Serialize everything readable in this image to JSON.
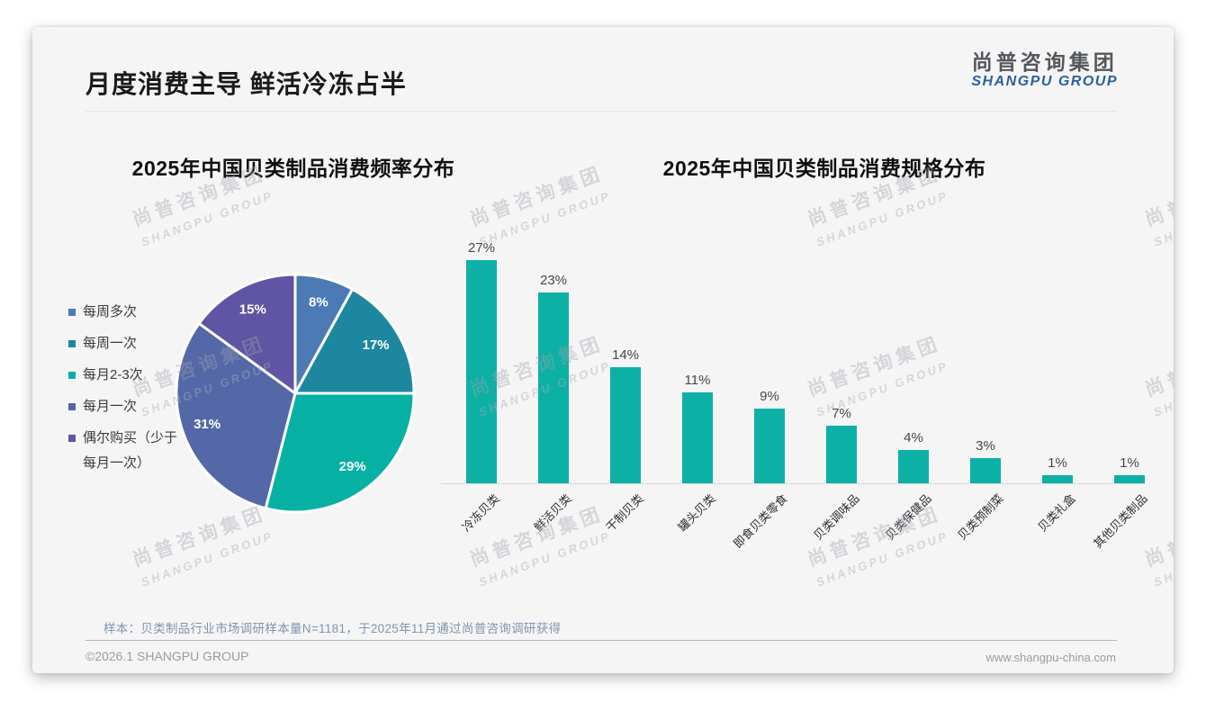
{
  "page": {
    "slide_title": "月度消费主导 鲜活冷冻占半",
    "logo": {
      "cn": "尚普咨询集团",
      "en": "SHANGPU GROUP"
    },
    "watermark": {
      "line1": "尚普咨询集团",
      "line2": "SHANGPU GROUP"
    },
    "footnote": "样本：贝类制品行业市场调研样本量N=1181，于2025年11月通过尚普咨询调研获得",
    "footer": {
      "copyright": "©2026.1 SHANGPU GROUP",
      "website": "www.shangpu-china.com"
    }
  },
  "chart_data": [
    {
      "type": "pie",
      "title": "2025年中国贝类制品消费频率分布",
      "categories": [
        "每周多次",
        "每周一次",
        "每月2-3次",
        "每月一次",
        "偶尔购买（少于每月一次）"
      ],
      "values": [
        8,
        17,
        29,
        31,
        15
      ],
      "labels": [
        "8%",
        "17%",
        "29%",
        "31%",
        "15%"
      ],
      "unit": "%",
      "colors": [
        "#4b7ab4",
        "#1e87a0",
        "#06b1a3",
        "#5468a8",
        "#6054a4"
      ],
      "legend_position": "left",
      "start_angle_deg": 0,
      "direction": "clockwise",
      "slice_border_color": "#ffffff",
      "label_color": "#ffffff"
    },
    {
      "type": "bar",
      "title": "2025年中国贝类制品消费规格分布",
      "categories": [
        "冷冻贝类",
        "鲜活贝类",
        "干制贝类",
        "罐头贝类",
        "即食贝类零食",
        "贝类调味品",
        "贝类保健品",
        "贝类预制菜",
        "贝类礼盒",
        "其他贝类制品"
      ],
      "values": [
        27,
        23,
        14,
        11,
        9,
        7,
        4,
        3,
        1,
        1
      ],
      "labels": [
        "27%",
        "23%",
        "14%",
        "11%",
        "9%",
        "7%",
        "4%",
        "3%",
        "1%",
        "1%"
      ],
      "unit": "%",
      "bar_color": "#0db0a4",
      "xlabel": "",
      "ylabel": "",
      "ylim": [
        0,
        30
      ],
      "grid": false,
      "value_labels": true,
      "category_label_rotation_deg": 45
    }
  ]
}
